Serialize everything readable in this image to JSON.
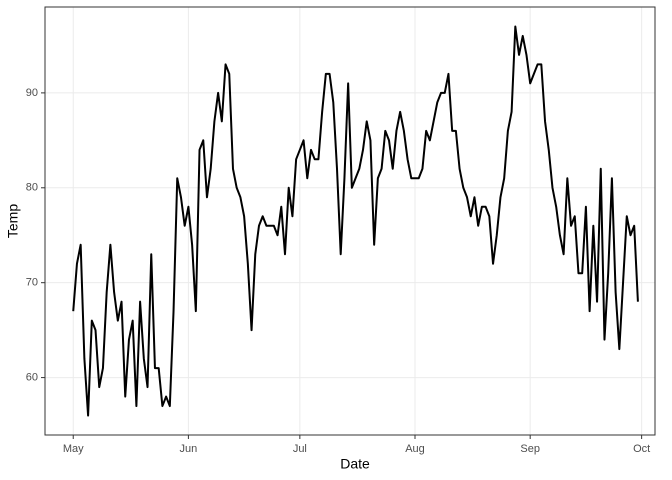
{
  "chart_data": {
    "type": "line",
    "x_label": "Date",
    "y_label": "Temp",
    "x": [
      0,
      1,
      2,
      3,
      4,
      5,
      6,
      7,
      8,
      9,
      10,
      11,
      12,
      13,
      14,
      15,
      16,
      17,
      18,
      19,
      20,
      21,
      22,
      23,
      24,
      25,
      26,
      27,
      28,
      29,
      30,
      31,
      32,
      33,
      34,
      35,
      36,
      37,
      38,
      39,
      40,
      41,
      42,
      43,
      44,
      45,
      46,
      47,
      48,
      49,
      50,
      51,
      52,
      53,
      54,
      55,
      56,
      57,
      58,
      59,
      60,
      61,
      62,
      63,
      64,
      65,
      66,
      67,
      68,
      69,
      70,
      71,
      72,
      73,
      74,
      75,
      76,
      77,
      78,
      79,
      80,
      81,
      82,
      83,
      84,
      85,
      86,
      87,
      88,
      89,
      90,
      91,
      92,
      93,
      94,
      95,
      96,
      97,
      98,
      99,
      100,
      101,
      102,
      103,
      104,
      105,
      106,
      107,
      108,
      109,
      110,
      111,
      112,
      113,
      114,
      115,
      116,
      117,
      118,
      119,
      120,
      121,
      122,
      123,
      124,
      125,
      126,
      127,
      128,
      129,
      130,
      131,
      132,
      133,
      134,
      135,
      136,
      137,
      138,
      139,
      140,
      141,
      142,
      143,
      144,
      145,
      146,
      147,
      148,
      149,
      150,
      151,
      152
    ],
    "series": [
      {
        "color": "#000000",
        "values": [
          67,
          72,
          74,
          62,
          56,
          66,
          65,
          59,
          61,
          69,
          74,
          69,
          66,
          68,
          58,
          64,
          66,
          57,
          68,
          62,
          59,
          73,
          61,
          61,
          57,
          58,
          57,
          67,
          81,
          79,
          76,
          78,
          74,
          67,
          84,
          85,
          79,
          82,
          87,
          90,
          87,
          93,
          92,
          82,
          80,
          79,
          77,
          72,
          65,
          73,
          76,
          77,
          76,
          76,
          76,
          75,
          78,
          73,
          80,
          77,
          83,
          84,
          85,
          81,
          84,
          83,
          83,
          88,
          92,
          92,
          89,
          82,
          73,
          81,
          91,
          80,
          81,
          82,
          84,
          87,
          85,
          74,
          81,
          82,
          86,
          85,
          82,
          86,
          88,
          86,
          83,
          81,
          81,
          81,
          82,
          86,
          85,
          87,
          89,
          90,
          90,
          92,
          86,
          86,
          82,
          80,
          79,
          77,
          79,
          76,
          78,
          78,
          77,
          72,
          75,
          79,
          81,
          86,
          88,
          97,
          94,
          96,
          94,
          91,
          92,
          93,
          93,
          87,
          84,
          80,
          78,
          75,
          73,
          81,
          76,
          77,
          71,
          71,
          78,
          67,
          76,
          68,
          82,
          64,
          71,
          81,
          69,
          63,
          70,
          77,
          75,
          76,
          68
        ]
      }
    ],
    "xlim": [
      -7.6,
      156.6
    ],
    "xticks": [
      {
        "value": 0,
        "label": "May"
      },
      {
        "value": 31,
        "label": "Jun"
      },
      {
        "value": 61,
        "label": "Jul"
      },
      {
        "value": 92,
        "label": "Aug"
      },
      {
        "value": 123,
        "label": "Sep"
      },
      {
        "value": 153,
        "label": "Oct"
      }
    ],
    "ylim": [
      53.95,
      99.05
    ],
    "yticks": [
      60,
      70,
      80,
      90
    ],
    "grid": true
  }
}
